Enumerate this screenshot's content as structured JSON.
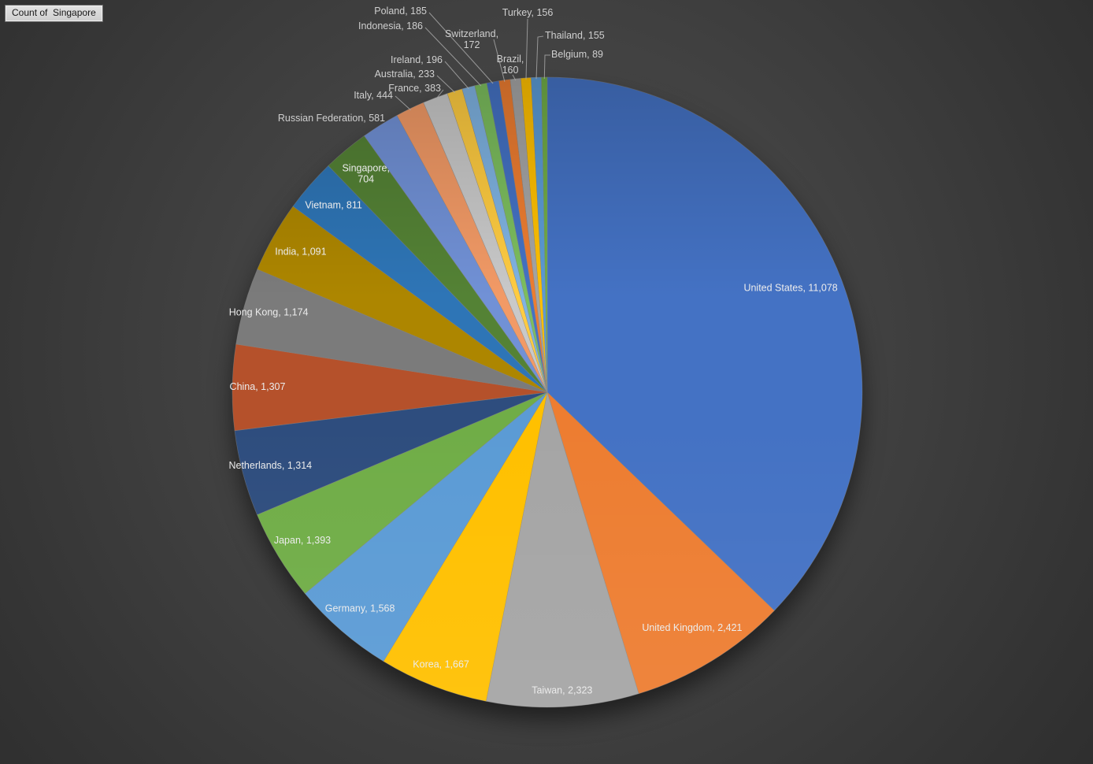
{
  "field_button": {
    "label": "Count of  Singapore"
  },
  "colors": {
    "inside_label_text": "#ececec",
    "callout_label_text": "#cfcfcf",
    "leader_line": "#a6a6a6",
    "slice_border": "#8f8f8f",
    "background_center": "#4b4b4b",
    "background_edge": "#272727",
    "field_button_bg": "#d9d9d9"
  },
  "chart_data": {
    "type": "pie",
    "title": "Count of Singapore",
    "legend": "none",
    "start_angle_deg": 0,
    "direction": "clockwise",
    "total": 29791,
    "slices": [
      {
        "label": "United States",
        "value": 11078,
        "display": "United States, 11,078",
        "color": "#4472C4"
      },
      {
        "label": "United Kingdom",
        "value": 2421,
        "display": "United Kingdom, 2,421",
        "color": "#ED7D31"
      },
      {
        "label": "Taiwan",
        "value": 2323,
        "display": "Taiwan, 2,323",
        "color": "#A5A5A5"
      },
      {
        "label": "Korea",
        "value": 1667,
        "display": "Korea, 1,667",
        "color": "#FFC000"
      },
      {
        "label": "Germany",
        "value": 1568,
        "display": "Germany, 1,568",
        "color": "#5B9BD5"
      },
      {
        "label": "Japan",
        "value": 1393,
        "display": "Japan, 1,393",
        "color": "#70AD47"
      },
      {
        "label": "Netherlands",
        "value": 1314,
        "display": "Netherlands, 1,314",
        "color": "#2E4D7E"
      },
      {
        "label": "China",
        "value": 1307,
        "display": "China, 1,307",
        "color": "#B5512B"
      },
      {
        "label": "Hong Kong",
        "value": 1174,
        "display": "Hong Kong, 1,174",
        "color": "#7B7B7B"
      },
      {
        "label": "India",
        "value": 1091,
        "display": "India, 1,091",
        "color": "#AD8600"
      },
      {
        "label": "Vietnam",
        "value": 811,
        "display": "Vietnam, 811",
        "color": "#2E75B6"
      },
      {
        "label": "Singapore",
        "value": 704,
        "display": "Singapore, 704",
        "color": "#548235"
      },
      {
        "label": "Russian Federation",
        "value": 581,
        "display": "Russian Federation, 581",
        "color": "#7191D6"
      },
      {
        "label": "Italy",
        "value": 444,
        "display": "Italy, 444",
        "color": "#F29A66"
      },
      {
        "label": "France",
        "value": 383,
        "display": "France, 383",
        "color": "#C9C9C9"
      },
      {
        "label": "Australia",
        "value": 233,
        "display": "Australia, 233",
        "color": "#FFCC41"
      },
      {
        "label": "Ireland",
        "value": 196,
        "display": "Ireland, 196",
        "color": "#7FB3E2"
      },
      {
        "label": "Indonesia",
        "value": 186,
        "display": "Indonesia, 186",
        "color": "#7CBE5E"
      },
      {
        "label": "Poland",
        "value": 185,
        "display": "Poland, 185",
        "color": "#4472C4"
      },
      {
        "label": "Switzerland",
        "value": 172,
        "display": "Switzerland, 172",
        "color": "#ED7D31"
      },
      {
        "label": "Brazil",
        "value": 160,
        "display": "Brazil, 160",
        "color": "#A5A5A5"
      },
      {
        "label": "Turkey",
        "value": 156,
        "display": "Turkey, 156",
        "color": "#FFC000"
      },
      {
        "label": "Thailand",
        "value": 155,
        "display": "Thailand, 155",
        "color": "#5B9BD5"
      },
      {
        "label": "Belgium",
        "value": 89,
        "display": "Belgium, 89",
        "color": "#70AD47"
      }
    ]
  }
}
